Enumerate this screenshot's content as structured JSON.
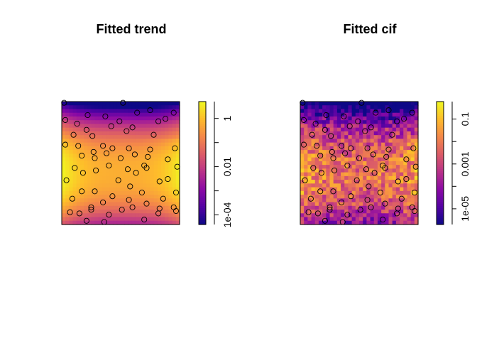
{
  "chart_data": [
    {
      "type": "heatmap",
      "title": "Fitted trend",
      "xlabel": "",
      "ylabel": "",
      "scale": "log10",
      "colormap": "plasma",
      "colorbar": {
        "ticks": [
          {
            "value": 1,
            "label": "1"
          },
          {
            "value": 0.01,
            "label": "0.01"
          },
          {
            "value": 0.0001,
            "label": "1e-04"
          }
        ],
        "min": 4e-05,
        "max": 5
      },
      "points": [
        [
          0.02,
          0.99
        ],
        [
          0.52,
          0.99
        ],
        [
          0.75,
          0.93
        ],
        [
          0.03,
          0.85
        ],
        [
          0.22,
          0.89
        ],
        [
          0.37,
          0.88
        ],
        [
          0.64,
          0.91
        ],
        [
          0.95,
          0.91
        ],
        [
          0.21,
          0.77
        ],
        [
          0.82,
          0.84
        ],
        [
          0.13,
          0.82
        ],
        [
          0.49,
          0.84
        ],
        [
          0.42,
          0.8
        ],
        [
          0.6,
          0.79
        ],
        [
          0.88,
          0.86
        ],
        [
          0.26,
          0.72
        ],
        [
          0.1,
          0.73
        ],
        [
          0.55,
          0.76
        ],
        [
          0.78,
          0.73
        ],
        [
          0.96,
          0.62
        ],
        [
          0.14,
          0.64
        ],
        [
          0.35,
          0.64
        ],
        [
          0.03,
          0.65
        ],
        [
          0.43,
          0.62
        ],
        [
          0.57,
          0.62
        ],
        [
          0.75,
          0.61
        ],
        [
          0.27,
          0.59
        ],
        [
          0.38,
          0.58
        ],
        [
          0.62,
          0.57
        ],
        [
          0.17,
          0.56
        ],
        [
          0.28,
          0.54
        ],
        [
          0.5,
          0.54
        ],
        [
          0.73,
          0.55
        ],
        [
          0.9,
          0.53
        ],
        [
          0.4,
          0.48
        ],
        [
          0.7,
          0.48
        ],
        [
          0.11,
          0.46
        ],
        [
          0.56,
          0.45
        ],
        [
          0.98,
          0.47
        ],
        [
          0.29,
          0.44
        ],
        [
          0.18,
          0.42
        ],
        [
          0.63,
          0.42
        ],
        [
          0.72,
          0.46
        ],
        [
          0.9,
          0.37
        ],
        [
          0.48,
          0.36
        ],
        [
          0.04,
          0.36
        ],
        [
          0.83,
          0.35
        ],
        [
          0.58,
          0.31
        ],
        [
          0.17,
          0.27
        ],
        [
          0.28,
          0.27
        ],
        [
          0.68,
          0.26
        ],
        [
          0.97,
          0.26
        ],
        [
          0.43,
          0.23
        ],
        [
          0.09,
          0.21
        ],
        [
          0.86,
          0.21
        ],
        [
          0.57,
          0.2
        ],
        [
          0.35,
          0.18
        ],
        [
          0.72,
          0.17
        ],
        [
          0.25,
          0.14
        ],
        [
          0.6,
          0.14
        ],
        [
          0.83,
          0.13
        ],
        [
          0.95,
          0.14
        ],
        [
          0.51,
          0.12
        ],
        [
          0.07,
          0.1
        ],
        [
          0.82,
          0.09
        ],
        [
          0.25,
          0.12
        ],
        [
          0.97,
          0.11
        ],
        [
          0.15,
          0.09
        ],
        [
          0.4,
          0.08
        ],
        [
          0.7,
          0.04
        ],
        [
          0.21,
          0.03
        ],
        [
          0.36,
          0.02
        ]
      ]
    },
    {
      "type": "heatmap",
      "title": "Fitted cif",
      "xlabel": "",
      "ylabel": "",
      "scale": "log10",
      "colormap": "plasma",
      "colorbar": {
        "ticks": [
          {
            "value": 0.1,
            "label": "0.1"
          },
          {
            "value": 0.001,
            "label": "0.001"
          },
          {
            "value": 1e-05,
            "label": "1e-05"
          }
        ],
        "min": 2e-06,
        "max": 0.6
      },
      "points": [
        [
          0.02,
          0.99
        ],
        [
          0.52,
          0.99
        ],
        [
          0.75,
          0.93
        ],
        [
          0.03,
          0.85
        ],
        [
          0.22,
          0.89
        ],
        [
          0.37,
          0.88
        ],
        [
          0.64,
          0.91
        ],
        [
          0.95,
          0.91
        ],
        [
          0.21,
          0.77
        ],
        [
          0.82,
          0.84
        ],
        [
          0.13,
          0.82
        ],
        [
          0.49,
          0.84
        ],
        [
          0.42,
          0.8
        ],
        [
          0.6,
          0.79
        ],
        [
          0.88,
          0.86
        ],
        [
          0.26,
          0.72
        ],
        [
          0.1,
          0.73
        ],
        [
          0.55,
          0.76
        ],
        [
          0.78,
          0.73
        ],
        [
          0.96,
          0.62
        ],
        [
          0.14,
          0.64
        ],
        [
          0.35,
          0.64
        ],
        [
          0.03,
          0.65
        ],
        [
          0.43,
          0.62
        ],
        [
          0.57,
          0.62
        ],
        [
          0.75,
          0.61
        ],
        [
          0.27,
          0.59
        ],
        [
          0.38,
          0.58
        ],
        [
          0.62,
          0.57
        ],
        [
          0.17,
          0.56
        ],
        [
          0.28,
          0.54
        ],
        [
          0.5,
          0.54
        ],
        [
          0.73,
          0.55
        ],
        [
          0.9,
          0.53
        ],
        [
          0.4,
          0.48
        ],
        [
          0.7,
          0.48
        ],
        [
          0.11,
          0.46
        ],
        [
          0.56,
          0.45
        ],
        [
          0.98,
          0.47
        ],
        [
          0.29,
          0.44
        ],
        [
          0.18,
          0.42
        ],
        [
          0.63,
          0.42
        ],
        [
          0.72,
          0.46
        ],
        [
          0.9,
          0.37
        ],
        [
          0.48,
          0.36
        ],
        [
          0.04,
          0.36
        ],
        [
          0.83,
          0.35
        ],
        [
          0.58,
          0.31
        ],
        [
          0.17,
          0.27
        ],
        [
          0.28,
          0.27
        ],
        [
          0.68,
          0.26
        ],
        [
          0.97,
          0.26
        ],
        [
          0.43,
          0.23
        ],
        [
          0.09,
          0.21
        ],
        [
          0.86,
          0.21
        ],
        [
          0.57,
          0.2
        ],
        [
          0.35,
          0.18
        ],
        [
          0.72,
          0.17
        ],
        [
          0.25,
          0.14
        ],
        [
          0.6,
          0.14
        ],
        [
          0.83,
          0.13
        ],
        [
          0.95,
          0.14
        ],
        [
          0.51,
          0.12
        ],
        [
          0.07,
          0.1
        ],
        [
          0.82,
          0.09
        ],
        [
          0.25,
          0.12
        ],
        [
          0.97,
          0.11
        ],
        [
          0.15,
          0.09
        ],
        [
          0.4,
          0.08
        ],
        [
          0.7,
          0.04
        ],
        [
          0.21,
          0.03
        ],
        [
          0.36,
          0.02
        ]
      ]
    }
  ]
}
